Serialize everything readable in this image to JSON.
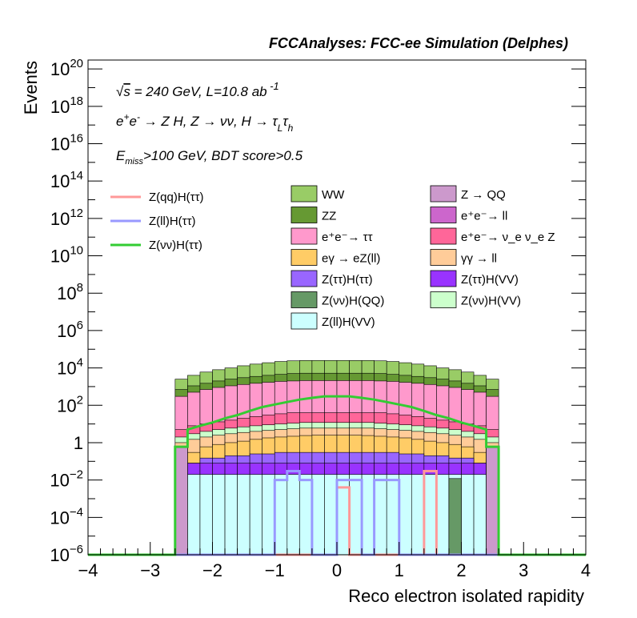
{
  "chart_data": {
    "type": "histogram-stacked-log",
    "title": "FCCAnalyses: FCC-ee Simulation (Delphes)",
    "xlabel": "Reco electron isolated rapidity",
    "ylabel": "Events",
    "xlim": [
      -4,
      4
    ],
    "ylim": [
      1e-06,
      3e+20
    ],
    "ylog": true,
    "bin_edges": [
      -2.6,
      -2.4,
      -2.2,
      -2.0,
      -1.8,
      -1.6,
      -1.4,
      -1.2,
      -1.0,
      -0.8,
      -0.6,
      -0.4,
      -0.2,
      0.0,
      0.2,
      0.4,
      0.6,
      0.8,
      1.0,
      1.2,
      1.4,
      1.6,
      1.8,
      2.0,
      2.2,
      2.4,
      2.6
    ],
    "xticks": [
      {
        "value": -4,
        "label": "−4"
      },
      {
        "value": -3,
        "label": "−3"
      },
      {
        "value": -2,
        "label": "−2"
      },
      {
        "value": -1,
        "label": "−1"
      },
      {
        "value": 0,
        "label": "0"
      },
      {
        "value": 1,
        "label": "1"
      },
      {
        "value": 2,
        "label": "2"
      },
      {
        "value": 3,
        "label": "3"
      },
      {
        "value": 4,
        "label": "4"
      }
    ],
    "yticks": [
      {
        "value": 1e-06,
        "base": "10",
        "exp": "−6"
      },
      {
        "value": 0.0001,
        "base": "10",
        "exp": "−4"
      },
      {
        "value": 0.01,
        "base": "10",
        "exp": "−2"
      },
      {
        "value": 1,
        "base": "1",
        "exp": ""
      },
      {
        "value": 100.0,
        "base": "10",
        "exp": "2"
      },
      {
        "value": 10000.0,
        "base": "10",
        "exp": "4"
      },
      {
        "value": 1000000.0,
        "base": "10",
        "exp": "6"
      },
      {
        "value": 100000000.0,
        "base": "10",
        "exp": "8"
      },
      {
        "value": 10000000000.0,
        "base": "10",
        "exp": "10"
      },
      {
        "value": 1000000000000.0,
        "base": "10",
        "exp": "12"
      },
      {
        "value": 100000000000000.0,
        "base": "10",
        "exp": "14"
      },
      {
        "value": 1e+16,
        "base": "10",
        "exp": "16"
      },
      {
        "value": 1e+18,
        "base": "10",
        "exp": "18"
      },
      {
        "value": 1e+20,
        "base": "10",
        "exp": "20"
      }
    ],
    "stack_tops": [
      {
        "name": "Z(ll)H(VV)",
        "color": "#ccffff",
        "values": [
          0.02,
          0.02,
          0.02,
          0.02,
          0.02,
          0.02,
          0.02,
          0.02,
          0.02,
          0.02,
          0.02,
          0.02,
          0.02,
          0.02,
          0.02,
          0.02,
          0.02,
          0.02,
          0.02,
          0.02,
          0.02,
          0.02,
          0.02,
          0.02,
          0.02,
          0.02
        ]
      },
      {
        "name": "Z(ττ)H(VV)",
        "color": "#9933ff",
        "values": [
          0.08,
          0.08,
          0.08,
          0.08,
          0.08,
          0.08,
          0.08,
          0.08,
          0.08,
          0.08,
          0.08,
          0.08,
          0.08,
          0.08,
          0.08,
          0.08,
          0.08,
          0.08,
          0.08,
          0.08,
          0.08,
          0.08,
          0.08,
          0.08,
          0.08,
          0.08
        ]
      },
      {
        "name": "Z(ττ)H(ττ)",
        "color": "#9966ff",
        "values": [
          0.08,
          0.08,
          0.15,
          0.15,
          0.2,
          0.2,
          0.25,
          0.25,
          0.3,
          0.3,
          0.3,
          0.3,
          0.3,
          0.3,
          0.3,
          0.3,
          0.3,
          0.3,
          0.25,
          0.25,
          0.2,
          0.2,
          0.15,
          0.15,
          0.08,
          0.08
        ]
      },
      {
        "name": "eγ → eZ(ll)",
        "color": "#ffcc66",
        "values": [
          0.3,
          0.3,
          0.6,
          0.8,
          1.0,
          1.2,
          1.5,
          1.8,
          2.0,
          2.2,
          2.4,
          2.5,
          2.5,
          2.5,
          2.5,
          2.4,
          2.2,
          2.0,
          1.8,
          1.5,
          1.2,
          1.0,
          0.8,
          0.6,
          0.3,
          0.3
        ]
      },
      {
        "name": "γγ → ll",
        "color": "#ffcc99",
        "values": [
          1.0,
          1.5,
          2.0,
          2.5,
          3.0,
          3.5,
          4.0,
          4.5,
          5.0,
          5.5,
          6.0,
          6.0,
          6.0,
          6.0,
          6.0,
          6.0,
          5.5,
          5.0,
          4.5,
          4.0,
          3.5,
          3.0,
          2.5,
          2.0,
          1.5,
          1.0
        ]
      },
      {
        "name": "Z(νν)H(VV)",
        "color": "#ccffcc",
        "values": [
          2.0,
          3.0,
          4.0,
          5.0,
          6.0,
          7.0,
          8.0,
          9.0,
          10,
          11,
          12,
          12,
          12,
          12,
          12,
          12,
          11,
          10,
          9.0,
          8.0,
          7.0,
          6.0,
          5.0,
          4.0,
          3.0,
          2.0
        ]
      },
      {
        "name": "e⁺e⁻→ ν_e ν_e Z",
        "color": "#ff6699",
        "values": [
          5,
          8,
          10,
          13,
          16,
          20,
          25,
          30,
          35,
          40,
          40,
          40,
          40,
          40,
          40,
          40,
          40,
          35,
          30,
          25,
          20,
          16,
          13,
          10,
          8,
          5
        ]
      },
      {
        "name": "e⁺e⁻→ ττ",
        "color": "#ff99cc",
        "values": [
          300,
          500,
          700,
          900,
          1100,
          1300,
          1500,
          1700,
          1900,
          2000,
          2100,
          2100,
          2100,
          2100,
          2100,
          2100,
          2000,
          1900,
          1700,
          1500,
          1300,
          1100,
          900,
          700,
          500,
          300
        ]
      },
      {
        "name": "ZZ",
        "color": "#669933",
        "values": [
          700,
          1100,
          1500,
          2000,
          2500,
          3000,
          3500,
          4000,
          4500,
          5000,
          5200,
          5200,
          5200,
          5200,
          5200,
          5200,
          5000,
          4500,
          4000,
          3500,
          3000,
          2500,
          2000,
          1500,
          1100,
          700
        ]
      },
      {
        "name": "WW",
        "color": "#99cc66",
        "values": [
          2500,
          4000,
          6000,
          8000,
          10000,
          13000,
          16000,
          19000,
          22000,
          24000,
          25000,
          25000,
          25000,
          25000,
          25000,
          25000,
          24000,
          22000,
          19000,
          16000,
          13000,
          10000,
          8000,
          6000,
          4000,
          2500
        ]
      }
    ],
    "overlay_bins": [
      {
        "name": "Z → QQ",
        "color": "#cc99cc",
        "bins": [
          [
            -2.6,
            -2.4,
            0.6
          ],
          [
            2.4,
            2.6,
            0.6
          ]
        ]
      },
      {
        "name": "e⁺e⁻→ ll",
        "color": "#cc66cc",
        "bins": []
      },
      {
        "name": "Z(νν)H(QQ)",
        "color": "#669966",
        "bins": [
          [
            1.8,
            2.0,
            0.012
          ]
        ]
      }
    ],
    "lines": [
      {
        "name": "Z(qq)H(ττ)",
        "color": "#ff9999",
        "points": [
          [
            -4,
            1e-06
          ],
          [
            0.0,
            1e-06
          ],
          [
            0.0,
            0.004
          ],
          [
            0.2,
            0.004
          ],
          [
            0.2,
            1e-06
          ],
          [
            1.4,
            1e-06
          ],
          [
            1.4,
            0.03
          ],
          [
            1.6,
            0.03
          ],
          [
            1.6,
            1e-06
          ],
          [
            4,
            1e-06
          ]
        ]
      },
      {
        "name": "Z(ll)H(ττ)",
        "color": "#9999ff",
        "points": [
          [
            -4,
            1e-06
          ],
          [
            -1.0,
            1e-06
          ],
          [
            -1.0,
            0.01
          ],
          [
            -0.8,
            0.01
          ],
          [
            -0.8,
            0.03
          ],
          [
            -0.6,
            0.03
          ],
          [
            -0.6,
            0.01
          ],
          [
            -0.4,
            0.01
          ],
          [
            -0.4,
            1e-06
          ],
          [
            0.0,
            1e-06
          ],
          [
            0.0,
            0.01
          ],
          [
            0.4,
            0.01
          ],
          [
            0.4,
            1e-06
          ],
          [
            0.6,
            1e-06
          ],
          [
            0.6,
            0.01
          ],
          [
            1.0,
            0.01
          ],
          [
            1.0,
            1e-06
          ],
          [
            4,
            1e-06
          ]
        ]
      },
      {
        "name": "Z(νν)H(ττ)",
        "color": "#33cc33",
        "points": [
          [
            -4,
            1e-06
          ],
          [
            -2.6,
            1e-06
          ],
          [
            -2.6,
            0.6
          ],
          [
            -2.4,
            0.6
          ],
          [
            -2.4,
            5
          ],
          [
            -2.2,
            8
          ],
          [
            -2.0,
            12
          ],
          [
            -1.8,
            20
          ],
          [
            -1.6,
            30
          ],
          [
            -1.4,
            50
          ],
          [
            -1.2,
            80
          ],
          [
            -1.0,
            110
          ],
          [
            -0.8,
            150
          ],
          [
            -0.6,
            200
          ],
          [
            -0.4,
            250
          ],
          [
            -0.2,
            300
          ],
          [
            0.0,
            300
          ],
          [
            0.2,
            300
          ],
          [
            0.4,
            250
          ],
          [
            0.6,
            200
          ],
          [
            0.8,
            150
          ],
          [
            1.0,
            110
          ],
          [
            1.2,
            80
          ],
          [
            1.4,
            50
          ],
          [
            1.6,
            30
          ],
          [
            1.8,
            20
          ],
          [
            2.0,
            12
          ],
          [
            2.2,
            8
          ],
          [
            2.4,
            5
          ],
          [
            2.4,
            0.6
          ],
          [
            2.6,
            0.6
          ],
          [
            2.6,
            1e-06
          ],
          [
            4,
            1e-06
          ]
        ]
      }
    ],
    "legend_lines": [
      {
        "name": "Z(qq)H(ττ)",
        "color": "#ff9999"
      },
      {
        "name": "Z(ll)H(ττ)",
        "color": "#9999ff"
      },
      {
        "name": "Z(νν)H(ττ)",
        "color": "#33cc33"
      }
    ],
    "legend_boxes": [
      {
        "name": "WW",
        "color": "#99cc66"
      },
      {
        "name": "Z → QQ",
        "color": "#cc99cc"
      },
      {
        "name": "ZZ",
        "color": "#669933"
      },
      {
        "name": "e⁺e⁻→ ll",
        "color": "#cc66cc"
      },
      {
        "name": "e⁺e⁻→ ττ",
        "color": "#ff99cc"
      },
      {
        "name": "e⁺e⁻→ ν_e ν_e Z",
        "color": "#ff6699"
      },
      {
        "name": "eγ → eZ(ll)",
        "color": "#ffcc66"
      },
      {
        "name": "γγ → ll",
        "color": "#ffcc99"
      },
      {
        "name": "Z(ττ)H(ττ)",
        "color": "#9966ff"
      },
      {
        "name": "Z(ττ)H(VV)",
        "color": "#9933ff"
      },
      {
        "name": "Z(νν)H(QQ)",
        "color": "#669966"
      },
      {
        "name": "Z(νν)H(VV)",
        "color": "#ccffcc"
      },
      {
        "name": "Z(ll)H(VV)",
        "color": "#ccffff"
      }
    ],
    "annotations": [
      "√s = 240 GeV, L=10.8 ab⁻¹",
      "e⁺e⁻ → Z H, Z → νν, H → τ_L τ_h",
      "E_miss>100 GeV, BDT score>0.5"
    ]
  }
}
